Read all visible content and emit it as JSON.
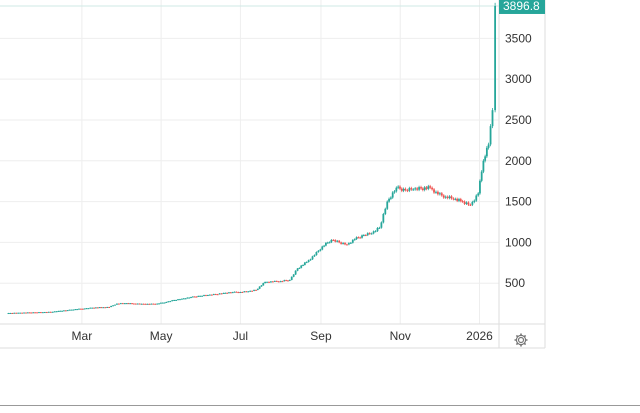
{
  "chart_data": {
    "type": "candlestick",
    "title": "",
    "xlabel": "",
    "ylabel": "",
    "x_unit": "days since 2025-01-01",
    "x_ticks": [
      {
        "label": "Mar",
        "day": 59
      },
      {
        "label": "May",
        "day": 120
      },
      {
        "label": "Jul",
        "day": 181
      },
      {
        "label": "Sep",
        "day": 243
      },
      {
        "label": "Nov",
        "day": 304
      },
      {
        "label": "2026",
        "day": 365
      }
    ],
    "y_ticks": [
      500,
      1000,
      1500,
      2000,
      2500,
      3000,
      3500
    ],
    "ylim": [
      0,
      3970
    ],
    "xlim": [
      -4,
      380
    ],
    "last_price_label": "3896.8",
    "colors": {
      "up": "#26a69a",
      "down": "#ef5350",
      "grid": "#eeeeee",
      "axis": "#dddddd",
      "price_badge": "#26a69a"
    },
    "days": [
      4,
      10,
      16,
      23,
      29,
      35,
      41,
      48,
      54,
      61,
      67,
      74,
      80,
      86,
      92,
      99,
      105,
      111,
      117,
      124,
      130,
      136,
      143,
      150,
      156,
      162,
      168,
      175,
      181,
      187,
      193,
      200,
      206,
      212,
      219,
      225,
      232,
      238,
      244,
      251,
      257,
      263,
      269,
      276,
      282,
      288,
      294,
      301,
      308,
      314,
      320,
      327,
      333,
      339,
      345,
      352,
      358,
      364,
      368,
      372,
      375,
      377
    ],
    "closes": [
      135,
      138,
      140,
      143,
      145,
      148,
      160,
      170,
      182,
      190,
      200,
      205,
      208,
      250,
      255,
      250,
      248,
      245,
      250,
      270,
      294,
      310,
      330,
      345,
      355,
      365,
      380,
      390,
      392,
      400,
      417,
      515,
      520,
      525,
      540,
      680,
      760,
      845,
      950,
      1030,
      1000,
      975,
      1040,
      1090,
      1110,
      1180,
      1500,
      1670,
      1640,
      1650,
      1660,
      1670,
      1590,
      1560,
      1530,
      1500,
      1460,
      1600,
      2000,
      2200,
      2620,
      3896.8
    ]
  }
}
